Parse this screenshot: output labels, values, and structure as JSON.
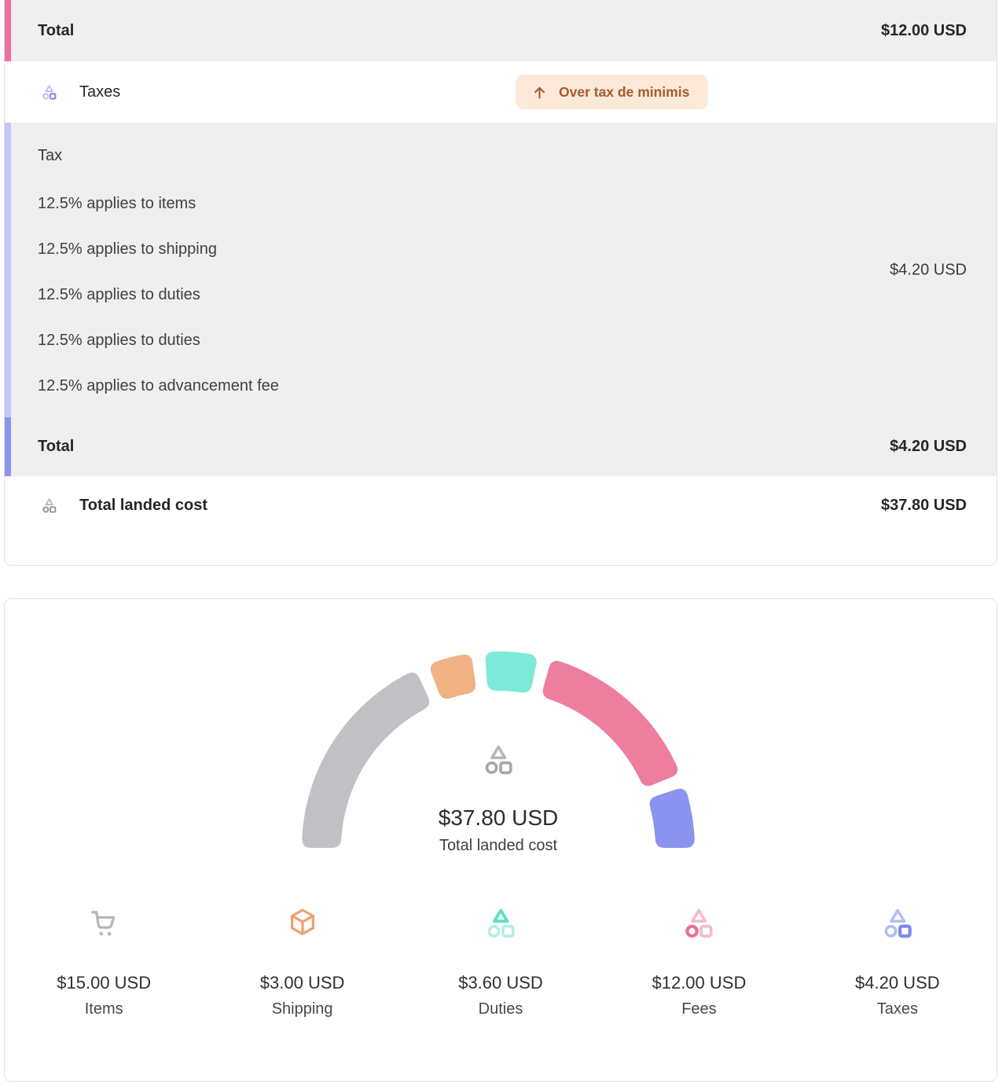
{
  "summary_card": {
    "fees_total_row": {
      "label": "Total",
      "value": "$12.00 USD"
    },
    "taxes_row": {
      "label": "Taxes",
      "badge_text": "Over tax de minimis"
    },
    "tax_details": {
      "heading": "Tax",
      "lines": [
        "12.5% applies to items",
        "12.5% applies to shipping",
        "12.5% applies to duties",
        "12.5% applies to duties",
        "12.5% applies to advancement fee"
      ],
      "value": "$4.20 USD"
    },
    "tax_total_row": {
      "label": "Total",
      "value": "$4.20 USD"
    },
    "landed_cost_row": {
      "label": "Total landed cost",
      "value": "$37.80 USD"
    }
  },
  "chart_card": {
    "center_value": "$37.80 USD",
    "center_label": "Total landed cost",
    "legend": [
      {
        "value": "$15.00 USD",
        "label": "Items"
      },
      {
        "value": "$3.00 USD",
        "label": "Shipping"
      },
      {
        "value": "$3.60 USD",
        "label": "Duties"
      },
      {
        "value": "$12.00 USD",
        "label": "Fees"
      },
      {
        "value": "$4.20 USD",
        "label": "Taxes"
      }
    ]
  },
  "chart_data": {
    "type": "pie",
    "variant": "half-donut-gauge",
    "categories": [
      "Items",
      "Shipping",
      "Duties",
      "Fees",
      "Taxes"
    ],
    "values": [
      15.0,
      3.0,
      3.6,
      12.0,
      4.2
    ],
    "total": 37.8,
    "unit": "USD",
    "center_value": "$37.80 USD",
    "center_label": "Total landed cost",
    "colors": [
      "#c1c1c5",
      "#f1b183",
      "#7cead6",
      "#ee7e9e",
      "#8b93ee"
    ],
    "arc_span_degrees": 180,
    "segment_gap_degrees": 4,
    "legend_position": "bottom"
  },
  "colors": {
    "accent_pink_bar": "#ee6fa0",
    "accent_lavender_bar": "#c2c7f5",
    "accent_periwinkle_bar": "#8b95ee",
    "row_gray_bg": "#efeff0",
    "badge_bg": "#fce9da",
    "badge_text": "#a4592c",
    "icon_gray": "#b6b6bb",
    "icon_gray_mid": "#a6a6ab",
    "icon_gray_dark": "#8f8f94",
    "icon_purple_light": "#b7bdf3",
    "icon_purple_dark": "#7f88ec",
    "icon_teal_light": "#b0f0e6",
    "icon_teal_dark": "#5fdfcb",
    "icon_pink_light": "#f6b9ca",
    "icon_pink_dark": "#ea7095",
    "icon_orange": "#efa171"
  }
}
